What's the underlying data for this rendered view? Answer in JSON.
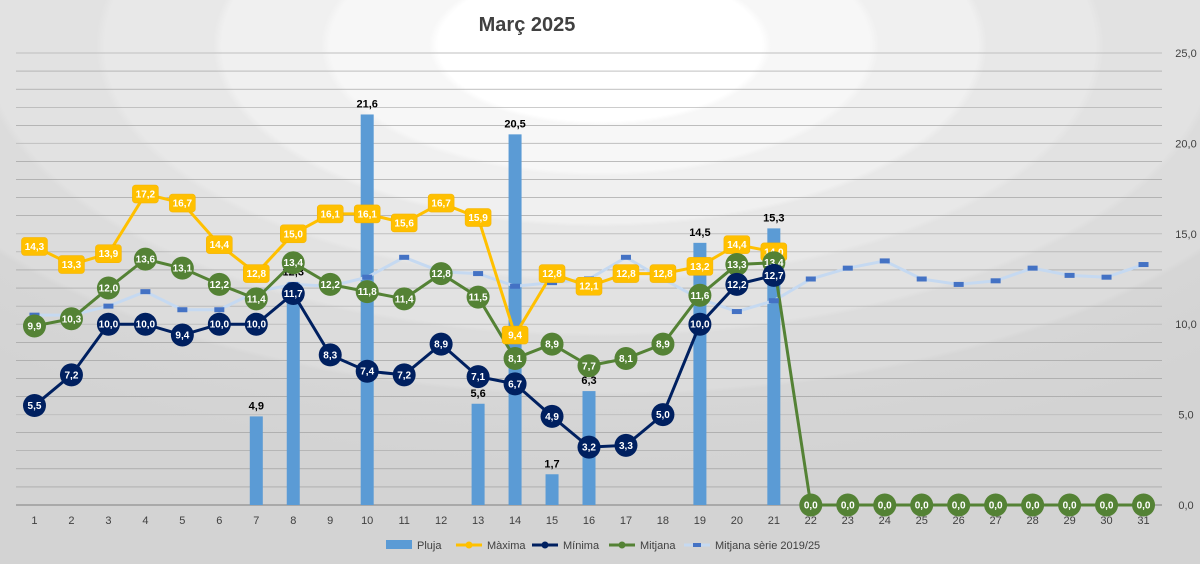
{
  "chart_data": {
    "type": "bar",
    "title": "Març 2025",
    "categories": [
      "1",
      "2",
      "3",
      "4",
      "5",
      "6",
      "7",
      "8",
      "9",
      "10",
      "11",
      "12",
      "13",
      "14",
      "15",
      "16",
      "17",
      "18",
      "19",
      "20",
      "21",
      "22",
      "23",
      "24",
      "25",
      "26",
      "27",
      "28",
      "29",
      "30",
      "31"
    ],
    "ylim": [
      0,
      25
    ],
    "yticks": [
      "0,0",
      "5,0",
      "10,0",
      "15,0",
      "20,0",
      "25,0"
    ],
    "y_axis_side": "right",
    "grid": true,
    "legend_position": "bottom",
    "series": [
      {
        "name": "Pluja",
        "kind": "bar",
        "color": "#5B9BD5",
        "values": [
          null,
          null,
          null,
          null,
          null,
          null,
          4.9,
          12.3,
          null,
          21.6,
          null,
          null,
          5.6,
          20.5,
          1.7,
          6.3,
          null,
          null,
          14.5,
          null,
          15.3,
          null,
          null,
          null,
          null,
          null,
          null,
          null,
          null,
          null,
          null
        ],
        "labels": [
          null,
          null,
          null,
          null,
          null,
          null,
          "4,9",
          "12,3",
          null,
          "21,6",
          null,
          null,
          "5,6",
          "20,5",
          "1,7",
          "6,3",
          null,
          null,
          "14,5",
          null,
          "15,3",
          null,
          null,
          null,
          null,
          null,
          null,
          null,
          null,
          null,
          null
        ]
      },
      {
        "name": "Màxima",
        "kind": "line",
        "color": "#FFC000",
        "values": [
          14.3,
          13.3,
          13.9,
          17.2,
          16.7,
          14.4,
          12.8,
          15.0,
          16.1,
          16.1,
          15.6,
          16.7,
          15.9,
          9.4,
          12.8,
          12.1,
          12.8,
          12.8,
          13.2,
          14.4,
          14.0,
          null,
          null,
          null,
          null,
          null,
          null,
          null,
          null,
          null,
          null
        ],
        "labels": [
          "14,3",
          "13,3",
          "13,9",
          "17,2",
          "16,7",
          "14,4",
          "12,8",
          "15,0",
          "16,1",
          "16,1",
          "15,6",
          "16,7",
          "15,9",
          "9,4",
          "12,8",
          "12,1",
          "12,8",
          "12,8",
          "13,2",
          "14,4",
          "14,0",
          null,
          null,
          null,
          null,
          null,
          null,
          null,
          null,
          null,
          null
        ]
      },
      {
        "name": "Mínima",
        "kind": "line",
        "color": "#002060",
        "values": [
          5.5,
          7.2,
          10.0,
          10.0,
          9.4,
          10.0,
          10.0,
          11.7,
          8.3,
          7.4,
          7.2,
          8.9,
          7.1,
          6.7,
          4.9,
          3.2,
          3.3,
          5.0,
          10.0,
          12.2,
          12.7,
          null,
          null,
          null,
          null,
          null,
          null,
          null,
          null,
          null,
          null
        ],
        "labels": [
          "5,5",
          "7,2",
          "10,0",
          "10,0",
          "9,4",
          "10,0",
          "10,0",
          "11,7",
          "8,3",
          "7,4",
          "7,2",
          "8,9",
          "7,1",
          "6,7",
          "4,9",
          "3,2",
          "3,3",
          "5,0",
          "10,0",
          "12,2",
          "12,7",
          null,
          null,
          null,
          null,
          null,
          null,
          null,
          null,
          null,
          null
        ]
      },
      {
        "name": "Mitjana",
        "kind": "line",
        "color": "#548235",
        "values": [
          9.9,
          10.3,
          12.0,
          13.6,
          13.1,
          12.2,
          11.4,
          13.4,
          12.2,
          11.8,
          11.4,
          12.8,
          11.5,
          8.1,
          8.9,
          7.7,
          8.1,
          8.9,
          11.6,
          13.3,
          13.4,
          0,
          0,
          0,
          0,
          0,
          0,
          0,
          0,
          0,
          0
        ],
        "labels": [
          "9,9",
          "10,3",
          "12,0",
          "13,6",
          "13,1",
          "12,2",
          "11,4",
          "13,4",
          "12,2",
          "11,8",
          "11,4",
          "12,8",
          "11,5",
          "8,1",
          "8,9",
          "7,7",
          "8,1",
          "8,9",
          "11,6",
          "13,3",
          "13,4",
          "0,0",
          "0,0",
          "0,0",
          "0,0",
          "0,0",
          "0,0",
          "0,0",
          "0,0",
          "0,0",
          "0,0"
        ]
      },
      {
        "name": "Mitjana sèrie 2019/25",
        "kind": "line-marker",
        "color": "#4472C4",
        "line_color": "#C5D9F1",
        "values": [
          10.5,
          10.5,
          11.0,
          11.8,
          10.8,
          10.8,
          11.8,
          12.2,
          12.1,
          12.6,
          13.7,
          12.9,
          12.8,
          12.1,
          12.3,
          12.5,
          13.7,
          12.5,
          11.4,
          10.7,
          11.3,
          12.5,
          13.1,
          13.5,
          12.5,
          12.2,
          12.4,
          13.1,
          12.7,
          12.6,
          13.3
        ]
      }
    ]
  }
}
